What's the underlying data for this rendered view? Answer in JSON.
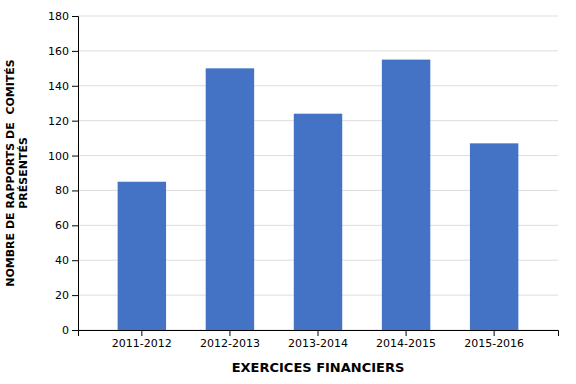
{
  "chart_data": {
    "type": "bar",
    "categories": [
      "2011-2012",
      "2012-2013",
      "2013-2014",
      "2014-2015",
      "2015-2016"
    ],
    "values": [
      85,
      150,
      124,
      155,
      107
    ],
    "color": "#4472C4",
    "xlabel": "EXERCICES FINANCIERS",
    "ylabel": "NOMBRE DE RAPPORTS DE  COMITÉS\nPRÉSENTÉS",
    "ylim": [
      0,
      180
    ],
    "yticks": [
      0,
      20,
      40,
      60,
      80,
      100,
      120,
      140,
      160,
      180
    ],
    "grid": true
  }
}
